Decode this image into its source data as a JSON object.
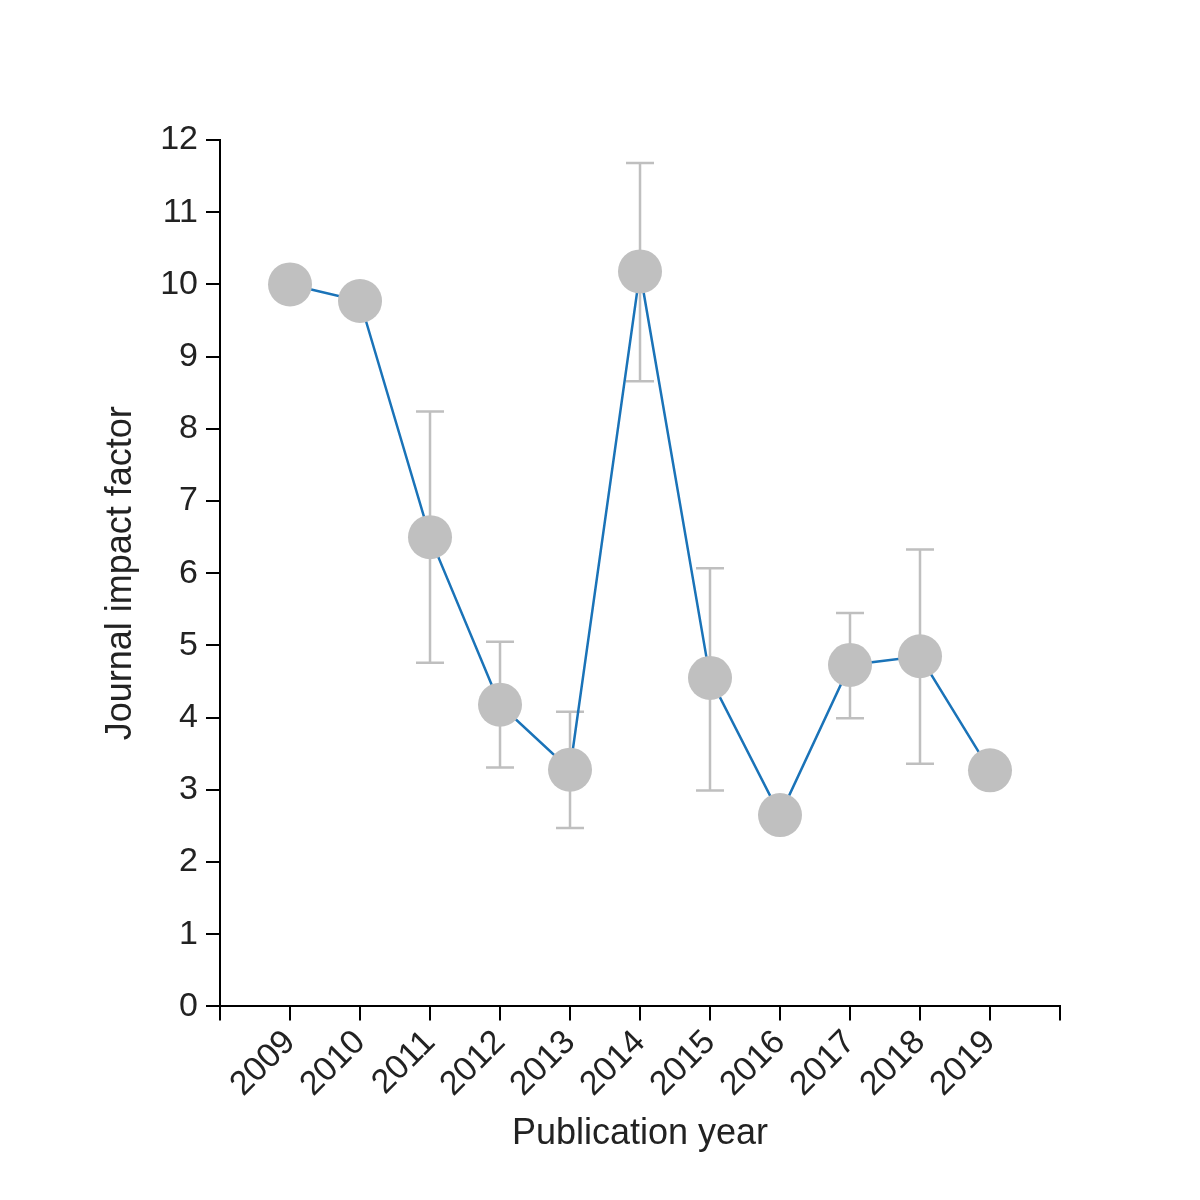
{
  "chart_data": {
    "type": "line",
    "x_label": "Publication year",
    "y_label": "Journal impact factor",
    "categories": [
      null,
      "2009",
      "2010",
      "2011",
      "2012",
      "2013",
      "2014",
      "2015",
      "2016",
      "2017",
      "2018",
      "2019",
      null
    ],
    "values": [
      null,
      10.0,
      9.77,
      6.5,
      4.18,
      3.28,
      10.18,
      4.55,
      2.65,
      4.73,
      4.85,
      3.27,
      null
    ],
    "error_low": [
      null,
      null,
      null,
      4.76,
      3.31,
      2.47,
      8.66,
      2.99,
      null,
      3.99,
      3.36,
      null,
      null
    ],
    "error_high": [
      null,
      null,
      null,
      8.24,
      5.05,
      4.08,
      11.68,
      6.07,
      null,
      5.45,
      6.33,
      null,
      null
    ],
    "color": "#1a73b8",
    "marker": "circle",
    "ylim": [
      0,
      12
    ],
    "yticks": [
      0,
      1,
      2,
      3,
      4,
      5,
      6,
      7,
      8,
      9,
      10,
      11,
      12
    ],
    "grid": false
  }
}
